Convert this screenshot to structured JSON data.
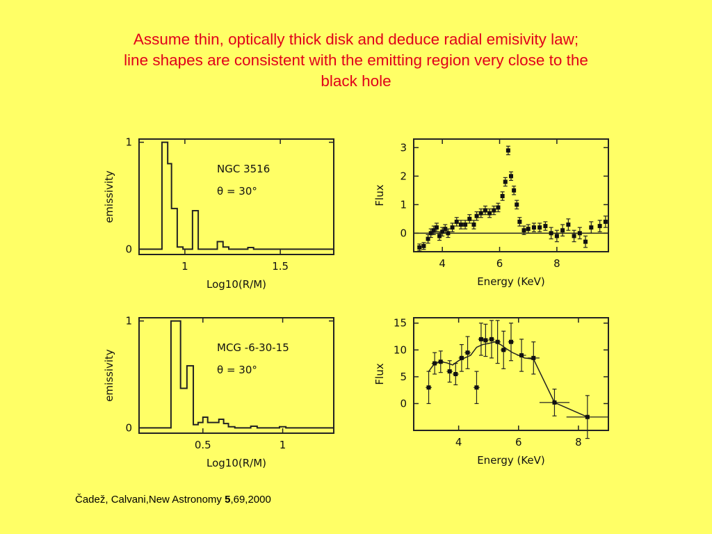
{
  "slide": {
    "title_line1": "Assume thin, optically thick disk and deduce radial emisivity law;",
    "title_line2": "line shapes are consistent with the emitting region very close to the",
    "title_line3": "black hole",
    "citation_prefix": "Čadež, Calvani,New Astronomy ",
    "citation_volume": "5",
    "citation_suffix": ",69,2000"
  },
  "chart_data": [
    {
      "id": "emis1",
      "type": "step",
      "xlabel": "Log10(R/M)",
      "ylabel": "emissivity",
      "annotation1": "NGC 3516",
      "annotation2": "θ = 30°",
      "xlim": [
        0.76,
        1.78
      ],
      "ylim": [
        -0.05,
        1.03
      ],
      "xticks": [
        1,
        1.5
      ],
      "xtick_labels": [
        "1",
        "1.5"
      ],
      "yticks": [
        0,
        1
      ],
      "ytick_labels": [
        "0",
        "1"
      ],
      "x": [
        0.76,
        0.88,
        0.88,
        0.91,
        0.91,
        0.93,
        0.93,
        0.96,
        0.96,
        0.99,
        0.99,
        1.04,
        1.04,
        1.07,
        1.07,
        1.17,
        1.17,
        1.2,
        1.2,
        1.23,
        1.23,
        1.33,
        1.33,
        1.36,
        1.36,
        1.78
      ],
      "y": [
        0.0,
        0.0,
        1.0,
        1.0,
        0.8,
        0.8,
        0.38,
        0.38,
        0.02,
        0.02,
        0.0,
        0.0,
        0.36,
        0.36,
        0.0,
        0.0,
        0.07,
        0.07,
        0.02,
        0.02,
        0.0,
        0.0,
        0.015,
        0.015,
        0.0,
        0.0
      ]
    },
    {
      "id": "flux1",
      "type": "scatter-errorbar",
      "xlabel": "Energy (KeV)",
      "ylabel": "Flux",
      "xlim": [
        3.0,
        9.8
      ],
      "ylim": [
        -0.65,
        3.3
      ],
      "xticks": [
        4,
        6,
        8
      ],
      "xtick_labels": [
        "4",
        "6",
        "8"
      ],
      "yticks": [
        0,
        1,
        2,
        3
      ],
      "ytick_labels": [
        "0",
        "1",
        "2",
        "3"
      ],
      "model_x": [
        3.0,
        6.75,
        9.8
      ],
      "model_y": [
        0.0,
        0.0,
        0.0
      ],
      "points": [
        {
          "x": 3.2,
          "y": -0.5,
          "e": 0.12
        },
        {
          "x": 3.35,
          "y": -0.45,
          "e": 0.12
        },
        {
          "x": 3.5,
          "y": -0.2,
          "e": 0.15
        },
        {
          "x": 3.6,
          "y": 0.0,
          "e": 0.15
        },
        {
          "x": 3.7,
          "y": 0.1,
          "e": 0.15
        },
        {
          "x": 3.8,
          "y": 0.2,
          "e": 0.15
        },
        {
          "x": 3.9,
          "y": -0.1,
          "e": 0.15
        },
        {
          "x": 4.0,
          "y": 0.05,
          "e": 0.15
        },
        {
          "x": 4.1,
          "y": 0.15,
          "e": 0.15
        },
        {
          "x": 4.2,
          "y": 0.0,
          "e": 0.15
        },
        {
          "x": 4.35,
          "y": 0.2,
          "e": 0.15
        },
        {
          "x": 4.5,
          "y": 0.4,
          "e": 0.15
        },
        {
          "x": 4.65,
          "y": 0.3,
          "e": 0.15
        },
        {
          "x": 4.8,
          "y": 0.3,
          "e": 0.15
        },
        {
          "x": 4.95,
          "y": 0.5,
          "e": 0.15
        },
        {
          "x": 5.1,
          "y": 0.3,
          "e": 0.15
        },
        {
          "x": 5.2,
          "y": 0.6,
          "e": 0.15
        },
        {
          "x": 5.35,
          "y": 0.7,
          "e": 0.15
        },
        {
          "x": 5.5,
          "y": 0.8,
          "e": 0.15
        },
        {
          "x": 5.65,
          "y": 0.7,
          "e": 0.15
        },
        {
          "x": 5.8,
          "y": 0.8,
          "e": 0.15
        },
        {
          "x": 5.95,
          "y": 0.9,
          "e": 0.15
        },
        {
          "x": 6.1,
          "y": 1.3,
          "e": 0.15
        },
        {
          "x": 6.2,
          "y": 1.8,
          "e": 0.15
        },
        {
          "x": 6.3,
          "y": 2.9,
          "e": 0.15
        },
        {
          "x": 6.4,
          "y": 2.0,
          "e": 0.15
        },
        {
          "x": 6.5,
          "y": 1.5,
          "e": 0.15
        },
        {
          "x": 6.6,
          "y": 1.0,
          "e": 0.15
        },
        {
          "x": 6.7,
          "y": 0.4,
          "e": 0.15
        },
        {
          "x": 6.85,
          "y": 0.1,
          "e": 0.15
        },
        {
          "x": 7.0,
          "y": 0.15,
          "e": 0.15
        },
        {
          "x": 7.2,
          "y": 0.2,
          "e": 0.15
        },
        {
          "x": 7.4,
          "y": 0.2,
          "e": 0.15
        },
        {
          "x": 7.6,
          "y": 0.25,
          "e": 0.15
        },
        {
          "x": 7.8,
          "y": 0.0,
          "e": 0.2
        },
        {
          "x": 8.0,
          "y": -0.1,
          "e": 0.2
        },
        {
          "x": 8.2,
          "y": 0.1,
          "e": 0.2
        },
        {
          "x": 8.4,
          "y": 0.3,
          "e": 0.2
        },
        {
          "x": 8.6,
          "y": -0.1,
          "e": 0.2
        },
        {
          "x": 8.8,
          "y": 0.0,
          "e": 0.2
        },
        {
          "x": 9.0,
          "y": -0.3,
          "e": 0.2
        },
        {
          "x": 9.2,
          "y": 0.2,
          "e": 0.2
        },
        {
          "x": 9.5,
          "y": 0.25,
          "e": 0.2
        },
        {
          "x": 9.7,
          "y": 0.4,
          "e": 0.2
        }
      ]
    },
    {
      "id": "emis2",
      "type": "step",
      "xlabel": "Log10(R/M)",
      "ylabel": "emissivity",
      "annotation1": "MCG -6-30-15",
      "annotation2": "θ = 30°",
      "xlim": [
        0.1,
        1.32
      ],
      "ylim": [
        -0.05,
        1.03
      ],
      "xticks": [
        0.5,
        1
      ],
      "xtick_labels": [
        "0.5",
        "1"
      ],
      "yticks": [
        0,
        1
      ],
      "ytick_labels": [
        "0",
        "1"
      ],
      "x": [
        0.1,
        0.3,
        0.3,
        0.36,
        0.36,
        0.4,
        0.4,
        0.44,
        0.44,
        0.47,
        0.47,
        0.5,
        0.5,
        0.53,
        0.53,
        0.6,
        0.6,
        0.63,
        0.63,
        0.66,
        0.66,
        0.7,
        0.7,
        0.8,
        0.8,
        0.84,
        0.84,
        0.98,
        0.98,
        1.02,
        1.02,
        1.32
      ],
      "y": [
        0.0,
        0.0,
        1.0,
        1.0,
        0.37,
        0.37,
        0.58,
        0.58,
        0.03,
        0.03,
        0.05,
        0.05,
        0.1,
        0.1,
        0.05,
        0.05,
        0.08,
        0.08,
        0.04,
        0.04,
        0.01,
        0.01,
        0.0,
        0.0,
        0.015,
        0.015,
        0.0,
        0.0,
        0.01,
        0.01,
        0.0,
        0.0
      ]
    },
    {
      "id": "flux2",
      "type": "scatter-errorbar",
      "xlabel": "Energy (KeV)",
      "ylabel": "Flux",
      "xlim": [
        2.5,
        9.0
      ],
      "ylim": [
        -5.0,
        16.0
      ],
      "xticks": [
        4,
        6,
        8
      ],
      "xtick_labels": [
        "4",
        "6",
        "8"
      ],
      "yticks": [
        0,
        5,
        10,
        15
      ],
      "ytick_labels": [
        "0",
        "5",
        "10",
        "15"
      ],
      "model_x": [
        3.0,
        3.2,
        3.4,
        3.6,
        3.8,
        4.0,
        4.2,
        4.4,
        4.6,
        4.8,
        5.0,
        5.2,
        5.4,
        5.6,
        5.8,
        6.0,
        6.2,
        6.5,
        7.2,
        8.3
      ],
      "model_y": [
        6.0,
        7.5,
        7.8,
        7.6,
        7.2,
        8.0,
        8.5,
        9.0,
        10.5,
        11.0,
        11.2,
        11.5,
        11.0,
        10.2,
        9.5,
        9.0,
        8.5,
        8.3,
        0.2,
        -2.5
      ],
      "points": [
        {
          "x": 3.0,
          "y": 3.0,
          "e": 3.0,
          "xe": 0.1
        },
        {
          "x": 3.2,
          "y": 7.5,
          "e": 2.0,
          "xe": 0.1
        },
        {
          "x": 3.4,
          "y": 7.8,
          "e": 2.0,
          "xe": 0.1
        },
        {
          "x": 3.7,
          "y": 6.0,
          "e": 2.0,
          "xe": 0.1
        },
        {
          "x": 3.9,
          "y": 5.5,
          "e": 2.0,
          "xe": 0.1
        },
        {
          "x": 4.1,
          "y": 8.5,
          "e": 2.5,
          "xe": 0.1
        },
        {
          "x": 4.3,
          "y": 9.5,
          "e": 3.0,
          "xe": 0.1
        },
        {
          "x": 4.6,
          "y": 3.0,
          "e": 3.0,
          "xe": 0.1
        },
        {
          "x": 4.75,
          "y": 12.0,
          "e": 3.0,
          "xe": 0.1
        },
        {
          "x": 4.9,
          "y": 11.8,
          "e": 3.0,
          "xe": 0.1
        },
        {
          "x": 5.1,
          "y": 12.0,
          "e": 3.5,
          "xe": 0.1
        },
        {
          "x": 5.3,
          "y": 11.5,
          "e": 4.0,
          "xe": 0.1
        },
        {
          "x": 5.5,
          "y": 10.0,
          "e": 3.5,
          "xe": 0.1
        },
        {
          "x": 5.75,
          "y": 11.5,
          "e": 3.5,
          "xe": 0.1
        },
        {
          "x": 6.1,
          "y": 9.0,
          "e": 3.0,
          "xe": 0.15
        },
        {
          "x": 6.5,
          "y": 8.5,
          "e": 3.0,
          "xe": 0.2
        },
        {
          "x": 7.2,
          "y": 0.2,
          "e": 2.5,
          "xe": 0.5
        },
        {
          "x": 8.3,
          "y": -2.5,
          "e": 4.0,
          "xe": 0.7
        }
      ]
    }
  ]
}
